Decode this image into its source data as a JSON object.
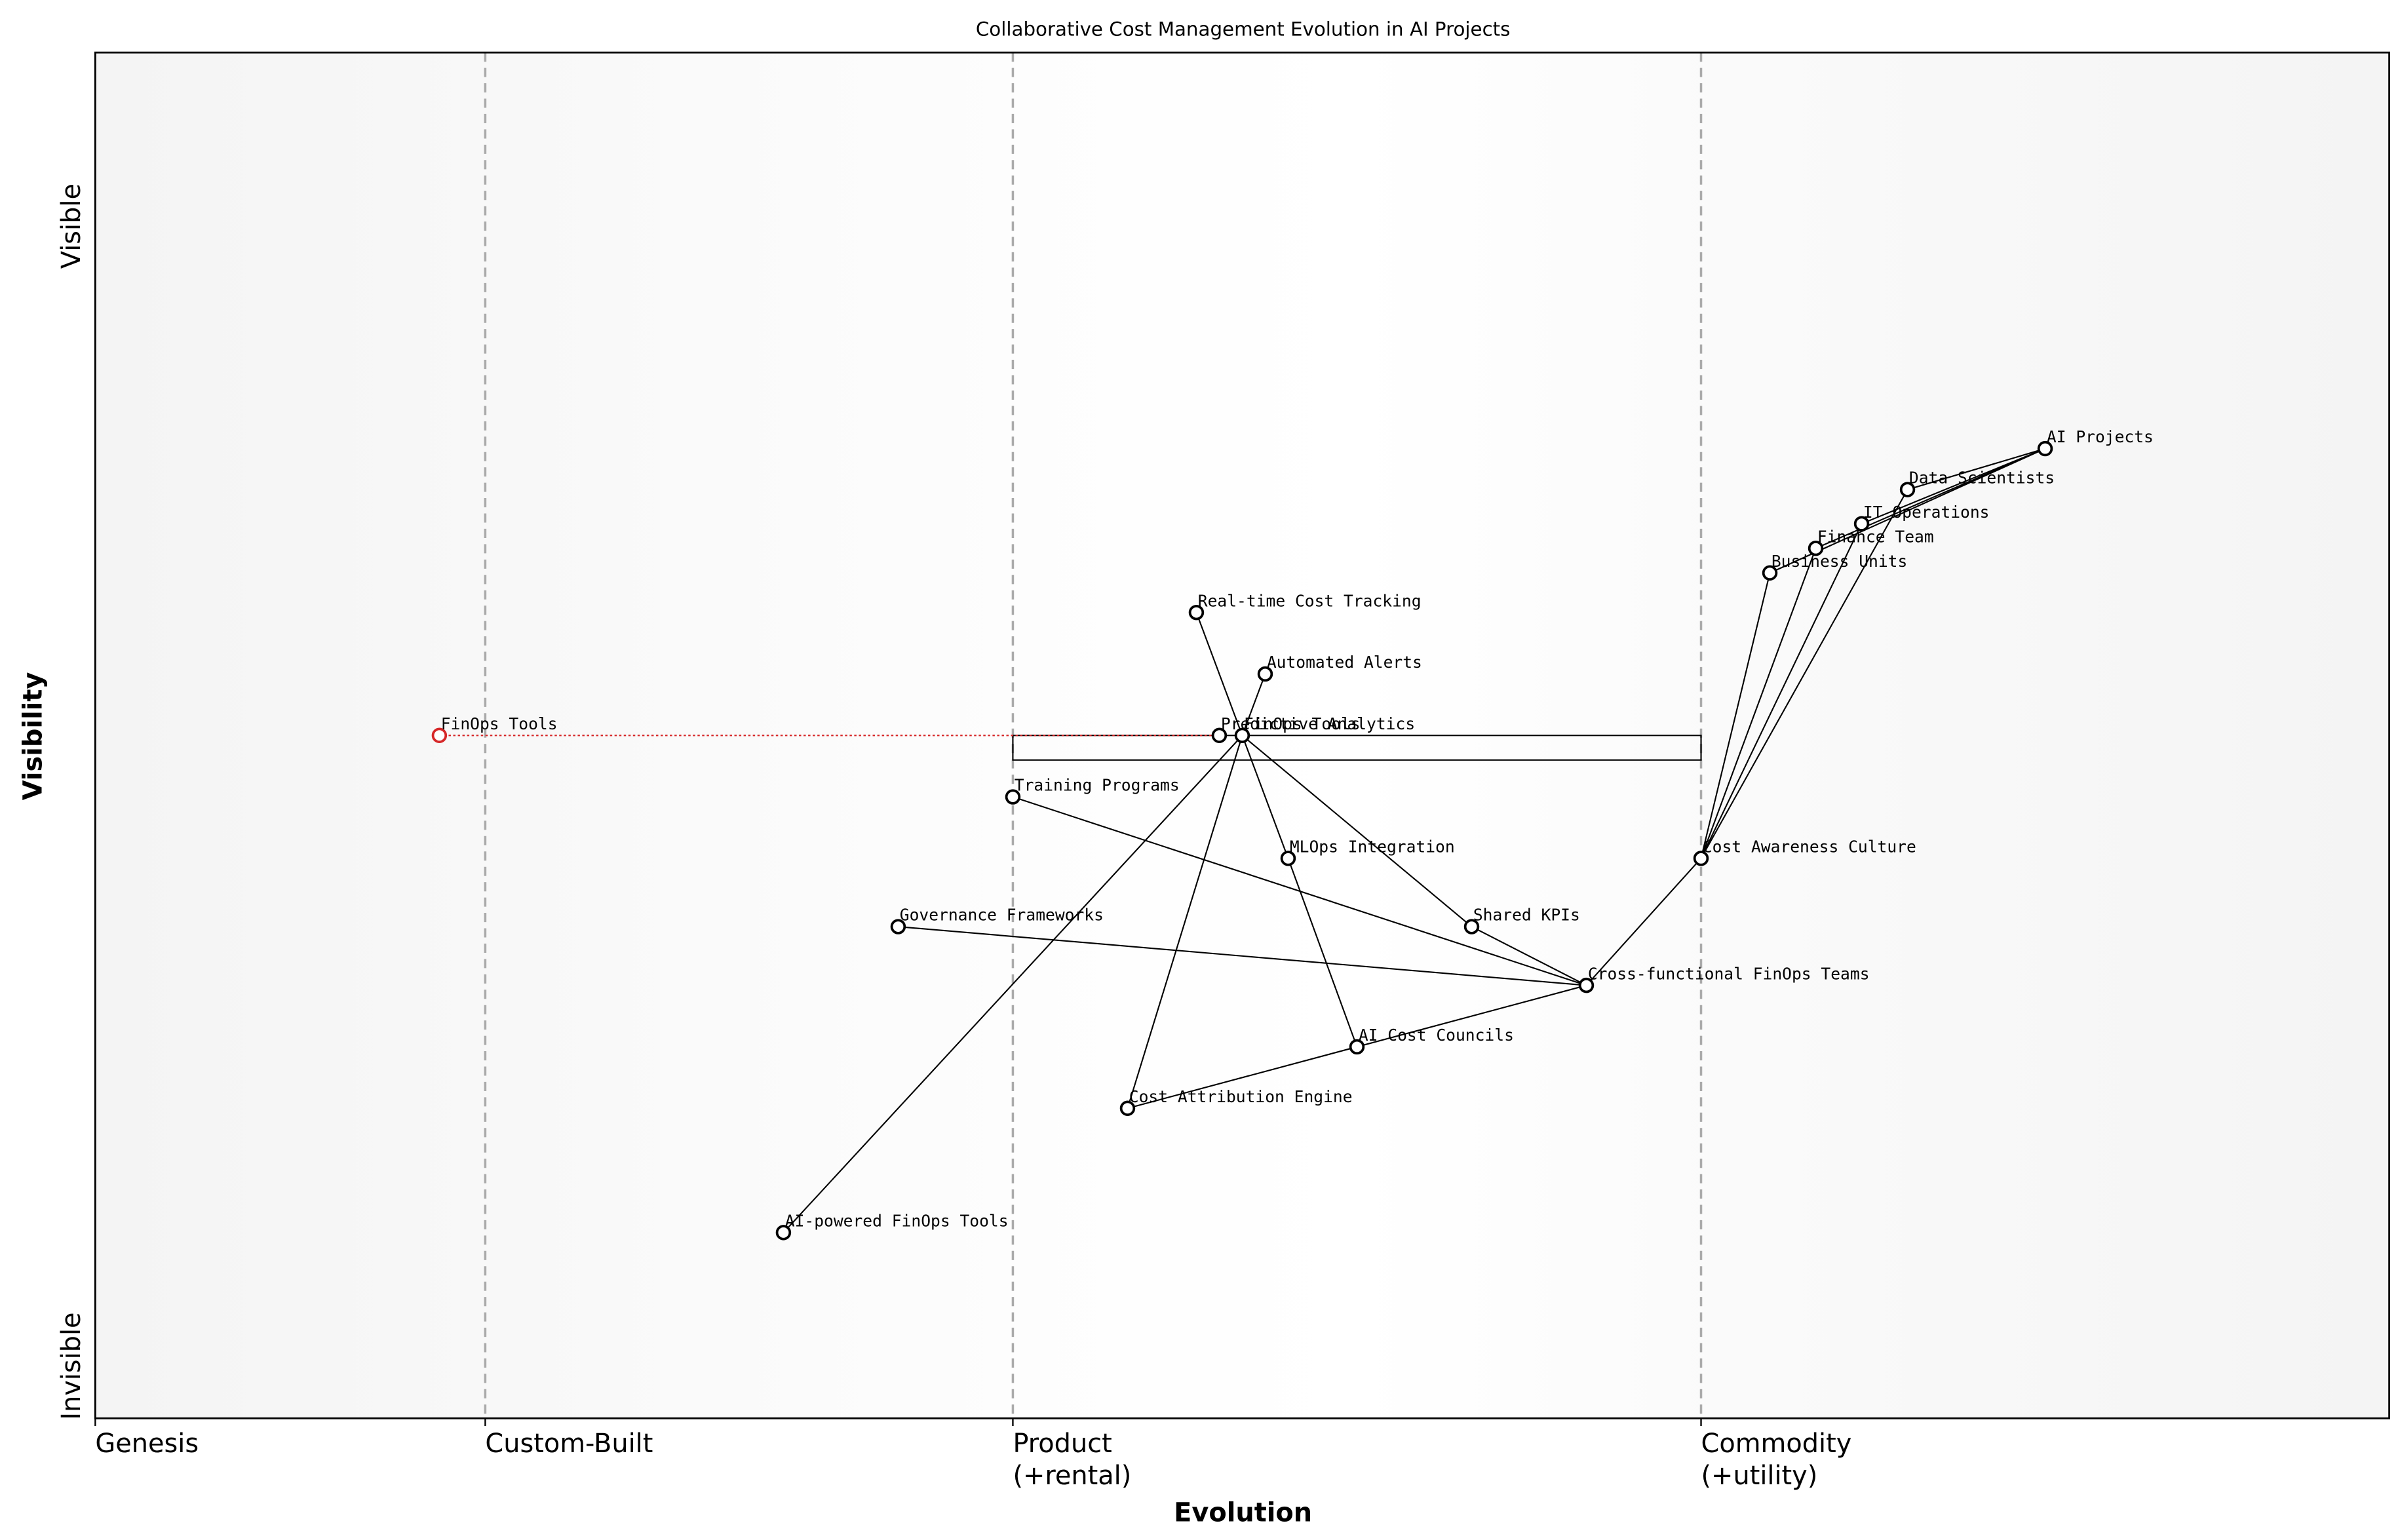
{
  "chart_data": {
    "type": "wardley",
    "title": "Collaborative Cost Management Evolution in AI Projects",
    "xlabel": "Evolution",
    "ylabel": "Visibility",
    "y_top_label": "Visible",
    "y_bottom_label": "Invisible",
    "xlim": [
      0,
      1
    ],
    "ylim": [
      0,
      1
    ],
    "stages": [
      {
        "value": 0,
        "label": [
          "Genesis"
        ]
      },
      {
        "value": 0.17,
        "label": [
          "Custom-Built"
        ]
      },
      {
        "value": 0.4,
        "label": [
          "Product",
          "(+rental)"
        ]
      },
      {
        "value": 0.7,
        "label": [
          "Commodity",
          "(+utility)"
        ]
      }
    ],
    "components": [
      {
        "name": "AI Projects",
        "x": 0.85,
        "y": 0.71
      },
      {
        "name": "Data Scientists",
        "x": 0.79,
        "y": 0.68
      },
      {
        "name": "IT Operations",
        "x": 0.77,
        "y": 0.655
      },
      {
        "name": "Finance Team",
        "x": 0.75,
        "y": 0.637
      },
      {
        "name": "Business Units",
        "x": 0.73,
        "y": 0.619
      },
      {
        "name": "Real-time Cost Tracking",
        "x": 0.48,
        "y": 0.59
      },
      {
        "name": "Automated Alerts",
        "x": 0.51,
        "y": 0.545
      },
      {
        "name": "Predictive Analytics",
        "x": 0.49,
        "y": 0.5
      },
      {
        "name": "FinOps Tools",
        "x": 0.5,
        "y": 0.5
      },
      {
        "name": "Training Programs",
        "x": 0.4,
        "y": 0.455
      },
      {
        "name": "MLOps Integration",
        "x": 0.52,
        "y": 0.41
      },
      {
        "name": "Cost Awareness Culture",
        "x": 0.7,
        "y": 0.41
      },
      {
        "name": "Governance Frameworks",
        "x": 0.35,
        "y": 0.36
      },
      {
        "name": "Shared KPIs",
        "x": 0.6,
        "y": 0.36
      },
      {
        "name": "Cross-functional FinOps Teams",
        "x": 0.65,
        "y": 0.317
      },
      {
        "name": "AI Cost Councils",
        "x": 0.55,
        "y": 0.272
      },
      {
        "name": "Cost Attribution Engine",
        "x": 0.45,
        "y": 0.227
      },
      {
        "name": "AI-powered FinOps Tools",
        "x": 0.3,
        "y": 0.136
      }
    ],
    "links": [
      [
        "AI Projects",
        "Data Scientists"
      ],
      [
        "AI Projects",
        "IT Operations"
      ],
      [
        "AI Projects",
        "Finance Team"
      ],
      [
        "AI Projects",
        "Business Units"
      ],
      [
        "Data Scientists",
        "Cost Awareness Culture"
      ],
      [
        "IT Operations",
        "Cost Awareness Culture"
      ],
      [
        "Finance Team",
        "Cost Awareness Culture"
      ],
      [
        "Business Units",
        "Cost Awareness Culture"
      ],
      [
        "Cost Awareness Culture",
        "Cross-functional FinOps Teams"
      ],
      [
        "Cross-functional FinOps Teams",
        "Training Programs"
      ],
      [
        "Cross-functional FinOps Teams",
        "Governance Frameworks"
      ],
      [
        "Cross-functional FinOps Teams",
        "Shared KPIs"
      ],
      [
        "Cross-functional FinOps Teams",
        "AI Cost Councils"
      ],
      [
        "AI Cost Councils",
        "Cost Attribution Engine"
      ],
      [
        "AI Cost Councils",
        "MLOps Integration"
      ],
      [
        "FinOps Tools",
        "MLOps Integration"
      ],
      [
        "FinOps Tools",
        "Real-time Cost Tracking"
      ],
      [
        "FinOps Tools",
        "Automated Alerts"
      ],
      [
        "FinOps Tools",
        "Shared KPIs"
      ],
      [
        "FinOps Tools",
        "Cost Attribution Engine"
      ],
      [
        "FinOps Tools",
        "AI-powered FinOps Tools"
      ]
    ],
    "pipeline": {
      "component": "FinOps Tools",
      "x_start": 0.4,
      "x_end": 0.7
    },
    "evolve": {
      "name": "FinOps Tools",
      "x": 0.15,
      "y": 0.5,
      "target": "Predictive Analytics",
      "color": "#d62728"
    }
  }
}
